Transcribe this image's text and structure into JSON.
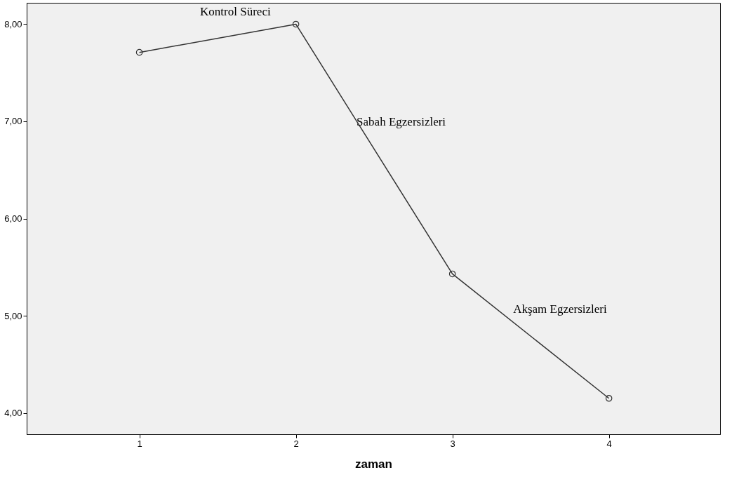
{
  "chart_data": {
    "type": "line",
    "xlabel": "zaman",
    "x": [
      1,
      2,
      3,
      4
    ],
    "series": [
      {
        "color": "#333333",
        "values": [
          7.71,
          8.0,
          5.43,
          4.15
        ]
      }
    ],
    "xlim": [
      0.28,
      4.71
    ],
    "xticks": [
      1,
      2,
      3,
      4
    ],
    "ylim": [
      3.78,
      8.22
    ],
    "yticks": [
      {
        "value": 4,
        "label": "4,00"
      },
      {
        "value": 5,
        "label": "5,00"
      },
      {
        "value": 6,
        "label": "6,00"
      },
      {
        "value": 7,
        "label": "7,00"
      },
      {
        "value": 8,
        "label": "8,00"
      }
    ],
    "annotations": [
      "Kontrol Süreci",
      "Sabah Egzersizleri",
      "Akşam Egzersizleri"
    ],
    "marker": "circle",
    "line_style": "solid",
    "grid": false,
    "legend": false
  }
}
